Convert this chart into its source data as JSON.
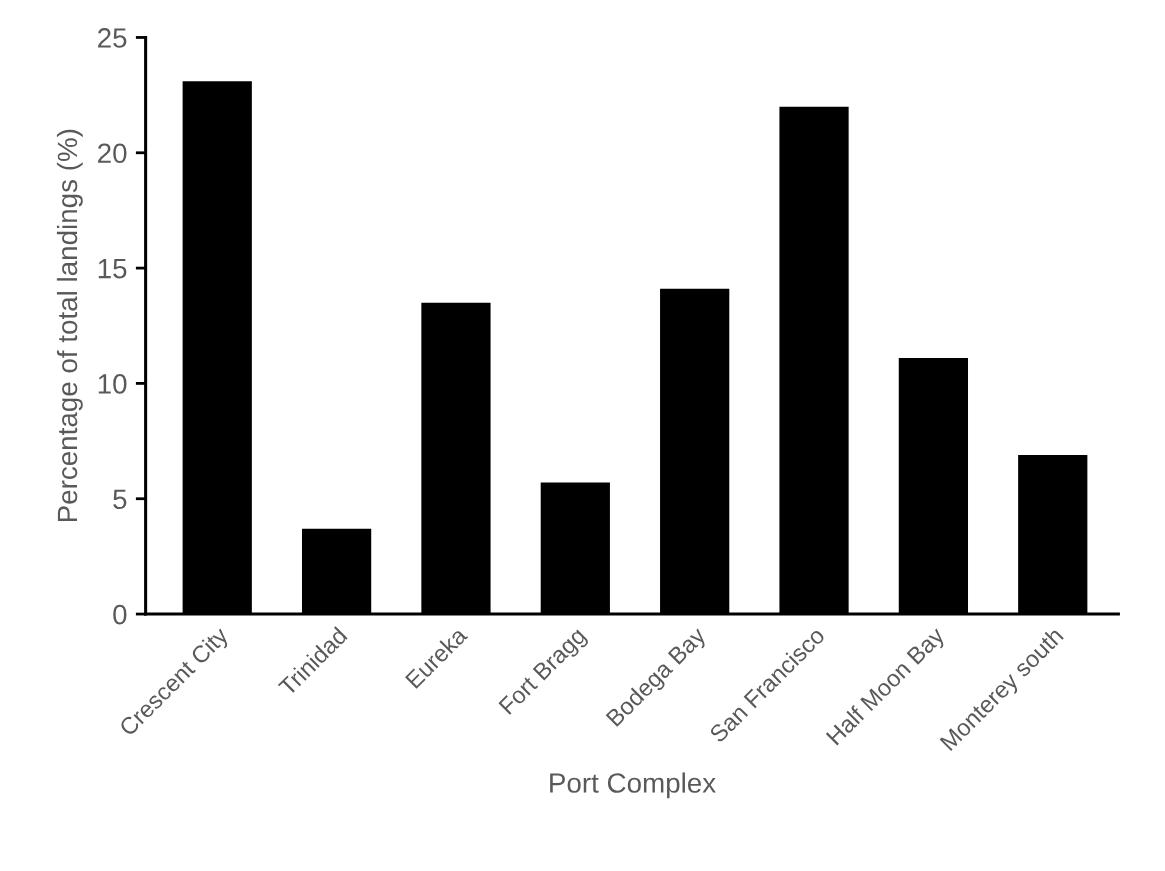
{
  "chart_data": {
    "type": "bar",
    "xlabel": "Port Complex",
    "ylabel": "Percentage of total landings (%)",
    "categories": [
      "Crescent City",
      "Trinidad",
      "Eureka",
      "Fort Bragg",
      "Bodega Bay",
      "San Francisco",
      "Half Moon Bay",
      "Monterey south"
    ],
    "values": [
      23.1,
      3.7,
      13.5,
      5.7,
      14.1,
      22.0,
      11.1,
      6.9
    ],
    "color": "#000000",
    "ylim": [
      0,
      25
    ],
    "yticks": [
      0,
      5,
      10,
      15,
      20,
      25
    ],
    "grid": false
  }
}
